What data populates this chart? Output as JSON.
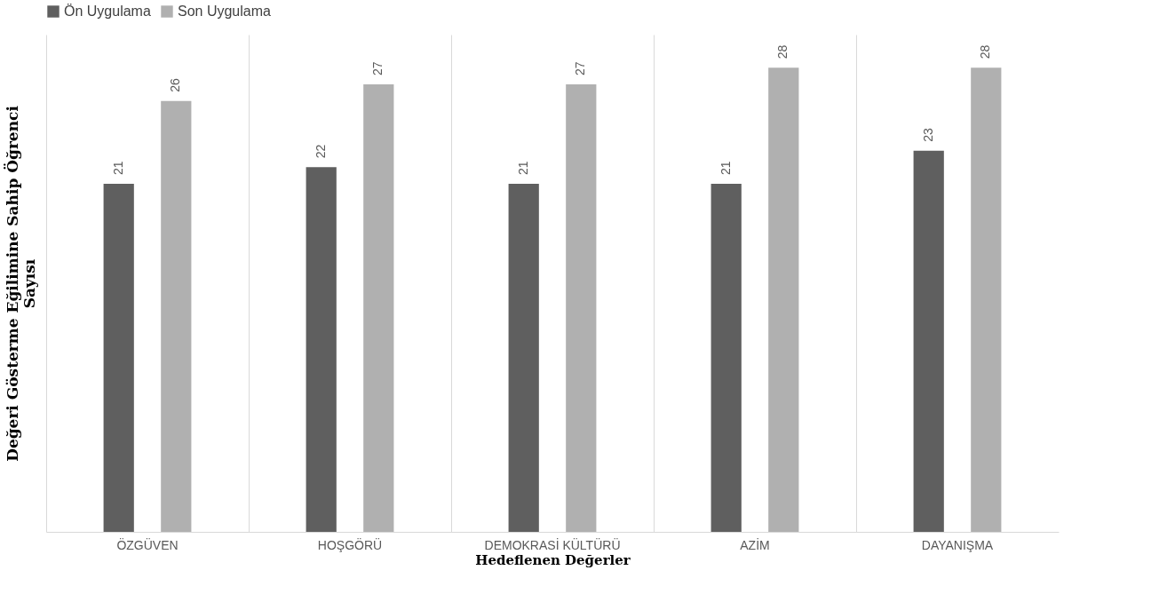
{
  "chart_data": {
    "type": "bar",
    "categories": [
      "ÖZGÜVEN",
      "HOŞGÖRÜ",
      "DEMOKRASİ KÜLTÜRÜ",
      "AZİM",
      "DAYANIŞMA"
    ],
    "series": [
      {
        "name": "Ön Uygulama",
        "color": "#5f5f5f",
        "values": [
          21,
          22,
          21,
          21,
          23
        ]
      },
      {
        "name": "Son Uygulama",
        "color": "#b0b0b0",
        "values": [
          26,
          27,
          27,
          28,
          28
        ]
      }
    ],
    "xlabel": "Hedeflenen Değerler",
    "ylabel": "Değeri Gösterme Eğilimine Sahip Öğrenci\nSayısı",
    "ylim": [
      0,
      30
    ],
    "data_labels": true,
    "legend": "top",
    "grid": "x"
  }
}
